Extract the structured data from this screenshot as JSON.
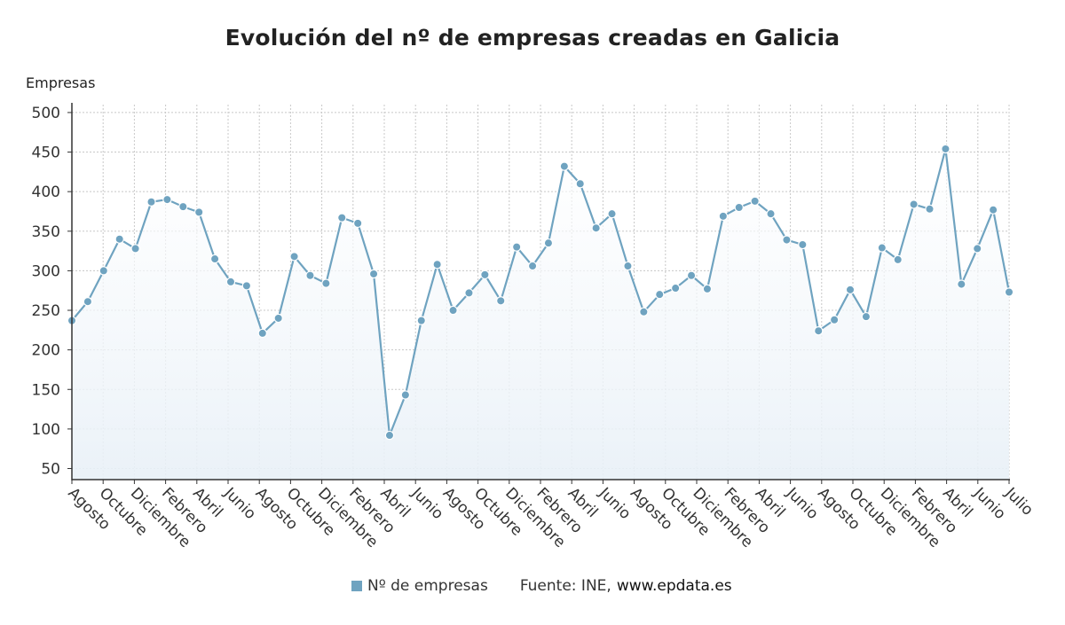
{
  "chart_data": {
    "type": "line",
    "title": "Evolución del nº de empresas creadas en Galicia",
    "ylabel": "Empresas",
    "ylim": [
      36,
      510
    ],
    "yticks": [
      50,
      100,
      150,
      200,
      250,
      300,
      350,
      400,
      450,
      500
    ],
    "grid": true,
    "color": "#6fa3c0",
    "x_tick_labels": [
      "Agosto",
      "Octubre",
      "Diciembre",
      "Febrero",
      "Abril",
      "Junio",
      "Agosto",
      "Octubre",
      "Diciembre",
      "Febrero",
      "Abril",
      "Junio",
      "Agosto",
      "Octubre",
      "Diciembre",
      "Febrero",
      "Abril",
      "Junio",
      "Agosto",
      "Octubre",
      "Diciembre",
      "Febrero",
      "Abril",
      "Junio",
      "Agosto",
      "Octubre",
      "Diciembre",
      "Febrero",
      "Abril",
      "Junio",
      "Julio"
    ],
    "series": [
      {
        "name": "Nº de empresas",
        "values": [
          237,
          261,
          300,
          340,
          328,
          387,
          390,
          381,
          374,
          315,
          286,
          281,
          221,
          240,
          318,
          294,
          284,
          367,
          360,
          296,
          92,
          143,
          237,
          308,
          250,
          272,
          295,
          262,
          330,
          306,
          335,
          432,
          410,
          354,
          372,
          306,
          248,
          270,
          278,
          294,
          277,
          369,
          380,
          388,
          372,
          339,
          333,
          224,
          238,
          276,
          242,
          329,
          314,
          384,
          378,
          454,
          283,
          328,
          377,
          273
        ]
      }
    ]
  },
  "legend": {
    "series_label": "Nº de empresas",
    "source_prefix": "Fuente: INE,",
    "source_site": "www.epdata.es"
  }
}
